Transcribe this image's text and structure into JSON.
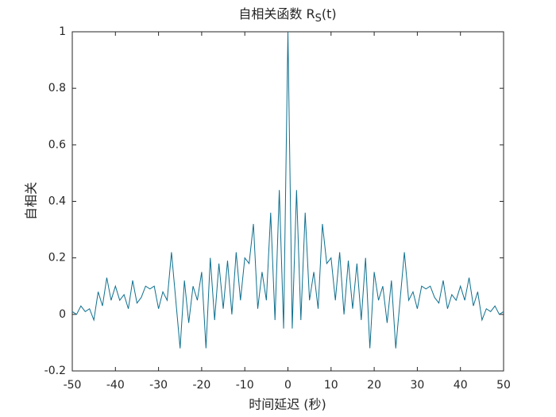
{
  "chart_data": {
    "type": "line",
    "title": [
      "自相关函数 R",
      "S",
      "(t)"
    ],
    "xlabel": "时间延迟 (秒)",
    "ylabel": "自相关",
    "x": [
      -50,
      -49,
      -48,
      -47,
      -46,
      -45,
      -44,
      -43,
      -42,
      -41,
      -40,
      -39,
      -38,
      -37,
      -36,
      -35,
      -34,
      -33,
      -32,
      -31,
      -30,
      -29,
      -28,
      -27,
      -26,
      -25,
      -24,
      -23,
      -22,
      -21,
      -20,
      -19,
      -18,
      -17,
      -16,
      -15,
      -14,
      -13,
      -12,
      -11,
      -10,
      -9,
      -8,
      -7,
      -6,
      -5,
      -4,
      -3,
      -2,
      -1,
      0,
      1,
      2,
      3,
      4,
      5,
      6,
      7,
      8,
      9,
      10,
      11,
      12,
      13,
      14,
      15,
      16,
      17,
      18,
      19,
      20,
      21,
      22,
      23,
      24,
      25,
      26,
      27,
      28,
      29,
      30,
      31,
      32,
      33,
      34,
      35,
      36,
      37,
      38,
      39,
      40,
      41,
      42,
      43,
      44,
      45,
      46,
      47,
      48,
      49,
      50
    ],
    "series": [
      {
        "color": "#0e6f8e",
        "values": [
          0.01,
          0.0,
          0.03,
          0.01,
          0.02,
          -0.02,
          0.08,
          0.03,
          0.13,
          0.05,
          0.1,
          0.05,
          0.07,
          0.02,
          0.12,
          0.04,
          0.06,
          0.1,
          0.09,
          0.1,
          0.02,
          0.08,
          0.05,
          0.22,
          0.05,
          -0.12,
          0.12,
          -0.03,
          0.1,
          0.05,
          0.15,
          -0.12,
          0.2,
          -0.02,
          0.18,
          0.02,
          0.19,
          0.0,
          0.22,
          0.05,
          0.2,
          0.18,
          0.32,
          0.02,
          0.15,
          0.05,
          0.36,
          -0.02,
          0.44,
          -0.05,
          1.0,
          -0.05,
          0.44,
          -0.02,
          0.36,
          0.05,
          0.15,
          0.02,
          0.32,
          0.18,
          0.2,
          0.05,
          0.22,
          0.0,
          0.19,
          0.02,
          0.18,
          -0.02,
          0.2,
          -0.12,
          0.15,
          0.05,
          0.1,
          -0.03,
          0.12,
          -0.12,
          0.05,
          0.22,
          0.05,
          0.08,
          0.02,
          0.1,
          0.09,
          0.1,
          0.06,
          0.04,
          0.12,
          0.02,
          0.07,
          0.05,
          0.1,
          0.05,
          0.13,
          0.03,
          0.08,
          -0.02,
          0.02,
          0.01,
          0.03,
          0.0,
          0.01
        ]
      }
    ],
    "xlim": [
      -50,
      50
    ],
    "ylim": [
      -0.2,
      1
    ],
    "xticks": [
      -50,
      -40,
      -30,
      -20,
      -10,
      0,
      10,
      20,
      30,
      40,
      50
    ],
    "yticks": [
      -0.2,
      0,
      0.2,
      0.4,
      0.6,
      0.8,
      1
    ],
    "grid": false
  }
}
